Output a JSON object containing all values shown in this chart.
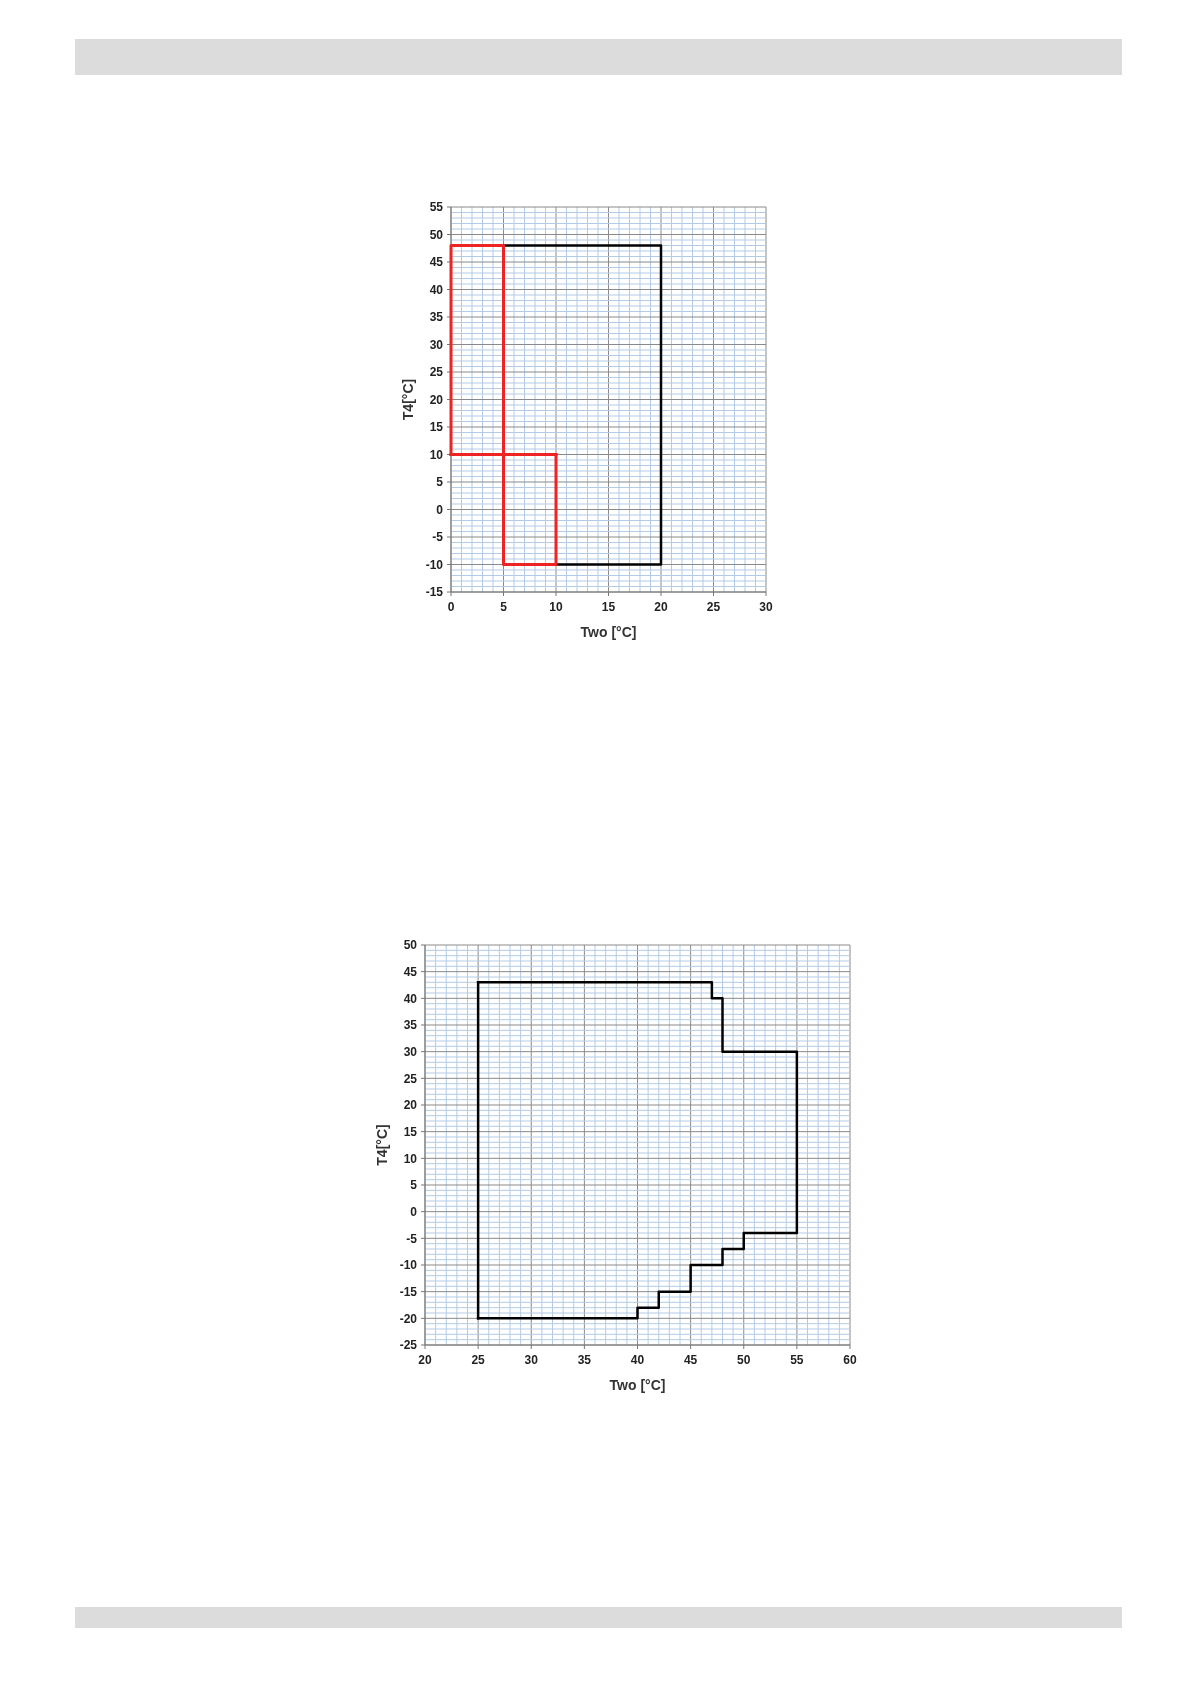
{
  "chart_data": [
    {
      "type": "line",
      "xlabel": "Two [°C]",
      "ylabel": "T4[°C]",
      "xlim": [
        0,
        30
      ],
      "ylim": [
        -15,
        55
      ],
      "xticks": [
        0,
        {
          "value": 1,
          "label": null
        },
        {
          "value": 2,
          "label": null
        },
        {
          "value": 3,
          "label": null
        },
        {
          "value": 4,
          "label": null
        },
        5,
        {
          "value": 6,
          "label": null
        },
        {
          "value": 7,
          "label": null
        },
        {
          "value": 8,
          "label": null
        },
        {
          "value": 9,
          "label": null
        },
        10,
        {
          "value": 11,
          "label": null
        },
        {
          "value": 12,
          "label": null
        },
        {
          "value": 13,
          "label": null
        },
        {
          "value": 14,
          "label": null
        },
        15,
        {
          "value": 16,
          "label": null
        },
        {
          "value": 17,
          "label": null
        },
        {
          "value": 18,
          "label": null
        },
        {
          "value": 19,
          "label": null
        },
        20,
        {
          "value": 21,
          "label": null
        },
        {
          "value": 22,
          "label": null
        },
        {
          "value": 23,
          "label": null
        },
        {
          "value": 24,
          "label": null
        },
        25,
        {
          "value": 26,
          "label": null
        },
        {
          "value": 27,
          "label": null
        },
        {
          "value": 28,
          "label": null
        },
        {
          "value": 29,
          "label": null
        },
        30
      ],
      "yticks": [
        -15,
        {
          "value": -14,
          "label": null
        },
        {
          "value": -13,
          "label": null
        },
        {
          "value": -12,
          "label": null
        },
        {
          "value": -11,
          "label": null
        },
        -10,
        {
          "value": -9,
          "label": null
        },
        {
          "value": -8,
          "label": null
        },
        {
          "value": -7,
          "label": null
        },
        {
          "value": -6,
          "label": null
        },
        -5,
        {
          "value": -4,
          "label": null
        },
        {
          "value": -3,
          "label": null
        },
        {
          "value": -2,
          "label": null
        },
        {
          "value": -1,
          "label": null
        },
        0,
        {
          "value": 1,
          "label": null
        },
        {
          "value": 2,
          "label": null
        },
        {
          "value": 3,
          "label": null
        },
        {
          "value": 4,
          "label": null
        },
        5,
        {
          "value": 6,
          "label": null
        },
        {
          "value": 7,
          "label": null
        },
        {
          "value": 8,
          "label": null
        },
        {
          "value": 9,
          "label": null
        },
        10,
        {
          "value": 11,
          "label": null
        },
        {
          "value": 12,
          "label": null
        },
        {
          "value": 13,
          "label": null
        },
        {
          "value": 14,
          "label": null
        },
        15,
        {
          "value": 16,
          "label": null
        },
        {
          "value": 17,
          "label": null
        },
        {
          "value": 18,
          "label": null
        },
        {
          "value": 19,
          "label": null
        },
        20,
        {
          "value": 21,
          "label": null
        },
        {
          "value": 22,
          "label": null
        },
        {
          "value": 23,
          "label": null
        },
        {
          "value": 24,
          "label": null
        },
        25,
        {
          "value": 26,
          "label": null
        },
        {
          "value": 27,
          "label": null
        },
        {
          "value": 28,
          "label": null
        },
        {
          "value": 29,
          "label": null
        },
        30,
        {
          "value": 31,
          "label": null
        },
        {
          "value": 32,
          "label": null
        },
        {
          "value": 33,
          "label": null
        },
        {
          "value": 34,
          "label": null
        },
        35,
        {
          "value": 36,
          "label": null
        },
        {
          "value": 37,
          "label": null
        },
        {
          "value": 38,
          "label": null
        },
        {
          "value": 39,
          "label": null
        },
        40,
        {
          "value": 41,
          "label": null
        },
        {
          "value": 42,
          "label": null
        },
        {
          "value": 43,
          "label": null
        },
        {
          "value": 44,
          "label": null
        },
        45,
        {
          "value": 46,
          "label": null
        },
        {
          "value": 47,
          "label": null
        },
        {
          "value": 48,
          "label": null
        },
        {
          "value": 49,
          "label": null
        },
        50,
        {
          "value": 51,
          "label": null
        },
        {
          "value": 52,
          "label": null
        },
        {
          "value": 53,
          "label": null
        },
        {
          "value": 54,
          "label": null
        },
        55
      ],
      "grid": true,
      "marker": "none",
      "series": [
        {
          "color": "#000000",
          "x": [
            5,
            20,
            20,
            10
          ],
          "values": [
            48,
            48,
            -10,
            -10
          ]
        },
        {
          "color": "#ee2424",
          "x": [
            0,
            0,
            5,
            5,
            10,
            10
          ],
          "values": [
            10,
            48,
            48,
            -10,
            -10,
            10
          ]
        },
        {
          "color": "#ee2424",
          "x": [
            10,
            0
          ],
          "values": [
            10,
            10
          ]
        }
      ]
    },
    {
      "type": "line",
      "xlabel": "Two [°C]",
      "ylabel": "T4[°C]",
      "xlim": [
        20,
        60
      ],
      "ylim": [
        -25,
        50
      ],
      "xticks": [
        20,
        {
          "value": 21,
          "label": null
        },
        {
          "value": 22,
          "label": null
        },
        {
          "value": 23,
          "label": null
        },
        {
          "value": 24,
          "label": null
        },
        25,
        {
          "value": 26,
          "label": null
        },
        {
          "value": 27,
          "label": null
        },
        {
          "value": 28,
          "label": null
        },
        {
          "value": 29,
          "label": null
        },
        30,
        {
          "value": 31,
          "label": null
        },
        {
          "value": 32,
          "label": null
        },
        {
          "value": 33,
          "label": null
        },
        {
          "value": 34,
          "label": null
        },
        35,
        {
          "value": 36,
          "label": null
        },
        {
          "value": 37,
          "label": null
        },
        {
          "value": 38,
          "label": null
        },
        {
          "value": 39,
          "label": null
        },
        40,
        {
          "value": 41,
          "label": null
        },
        {
          "value": 42,
          "label": null
        },
        {
          "value": 43,
          "label": null
        },
        {
          "value": 44,
          "label": null
        },
        45,
        {
          "value": 46,
          "label": null
        },
        {
          "value": 47,
          "label": null
        },
        {
          "value": 48,
          "label": null
        },
        {
          "value": 49,
          "label": null
        },
        50,
        {
          "value": 51,
          "label": null
        },
        {
          "value": 52,
          "label": null
        },
        {
          "value": 53,
          "label": null
        },
        {
          "value": 54,
          "label": null
        },
        55,
        {
          "value": 56,
          "label": null
        },
        {
          "value": 57,
          "label": null
        },
        {
          "value": 58,
          "label": null
        },
        {
          "value": 59,
          "label": null
        },
        60
      ],
      "yticks": [
        -25,
        {
          "value": -24,
          "label": null
        },
        {
          "value": -23,
          "label": null
        },
        {
          "value": -22,
          "label": null
        },
        {
          "value": -21,
          "label": null
        },
        -20,
        {
          "value": -19,
          "label": null
        },
        {
          "value": -18,
          "label": null
        },
        {
          "value": -17,
          "label": null
        },
        {
          "value": -16,
          "label": null
        },
        -15,
        {
          "value": -14,
          "label": null
        },
        {
          "value": -13,
          "label": null
        },
        {
          "value": -12,
          "label": null
        },
        {
          "value": -11,
          "label": null
        },
        -10,
        {
          "value": -9,
          "label": null
        },
        {
          "value": -8,
          "label": null
        },
        {
          "value": -7,
          "label": null
        },
        {
          "value": -6,
          "label": null
        },
        -5,
        {
          "value": -4,
          "label": null
        },
        {
          "value": -3,
          "label": null
        },
        {
          "value": -2,
          "label": null
        },
        {
          "value": -1,
          "label": null
        },
        0,
        {
          "value": 1,
          "label": null
        },
        {
          "value": 2,
          "label": null
        },
        {
          "value": 3,
          "label": null
        },
        {
          "value": 4,
          "label": null
        },
        5,
        {
          "value": 6,
          "label": null
        },
        {
          "value": 7,
          "label": null
        },
        {
          "value": 8,
          "label": null
        },
        {
          "value": 9,
          "label": null
        },
        10,
        {
          "value": 11,
          "label": null
        },
        {
          "value": 12,
          "label": null
        },
        {
          "value": 13,
          "label": null
        },
        {
          "value": 14,
          "label": null
        },
        15,
        {
          "value": 16,
          "label": null
        },
        {
          "value": 17,
          "label": null
        },
        {
          "value": 18,
          "label": null
        },
        {
          "value": 19,
          "label": null
        },
        20,
        {
          "value": 21,
          "label": null
        },
        {
          "value": 22,
          "label": null
        },
        {
          "value": 23,
          "label": null
        },
        {
          "value": 24,
          "label": null
        },
        25,
        {
          "value": 26,
          "label": null
        },
        {
          "value": 27,
          "label": null
        },
        {
          "value": 28,
          "label": null
        },
        {
          "value": 29,
          "label": null
        },
        30,
        {
          "value": 31,
          "label": null
        },
        {
          "value": 32,
          "label": null
        },
        {
          "value": 33,
          "label": null
        },
        {
          "value": 34,
          "label": null
        },
        35,
        {
          "value": 36,
          "label": null
        },
        {
          "value": 37,
          "label": null
        },
        {
          "value": 38,
          "label": null
        },
        {
          "value": 39,
          "label": null
        },
        40,
        {
          "value": 41,
          "label": null
        },
        {
          "value": 42,
          "label": null
        },
        {
          "value": 43,
          "label": null
        },
        {
          "value": 44,
          "label": null
        },
        45,
        {
          "value": 46,
          "label": null
        },
        {
          "value": 47,
          "label": null
        },
        {
          "value": 48,
          "label": null
        },
        {
          "value": 49,
          "label": null
        },
        50
      ],
      "grid": true,
      "marker": "none",
      "series": [
        {
          "color": "#000000",
          "x": [
            25,
            47,
            47,
            48,
            48,
            55,
            55,
            50,
            50,
            48,
            48,
            45,
            45,
            42,
            42,
            40,
            40,
            25
          ],
          "values": [
            43,
            43,
            40,
            40,
            30,
            30,
            -4,
            -4,
            -7,
            -7,
            -10,
            -10,
            -15,
            -15,
            -18,
            -18,
            -20,
            -20
          ]
        },
        {
          "color": "#000000",
          "x": [
            25,
            25
          ],
          "values": [
            -20,
            43
          ]
        }
      ]
    }
  ]
}
